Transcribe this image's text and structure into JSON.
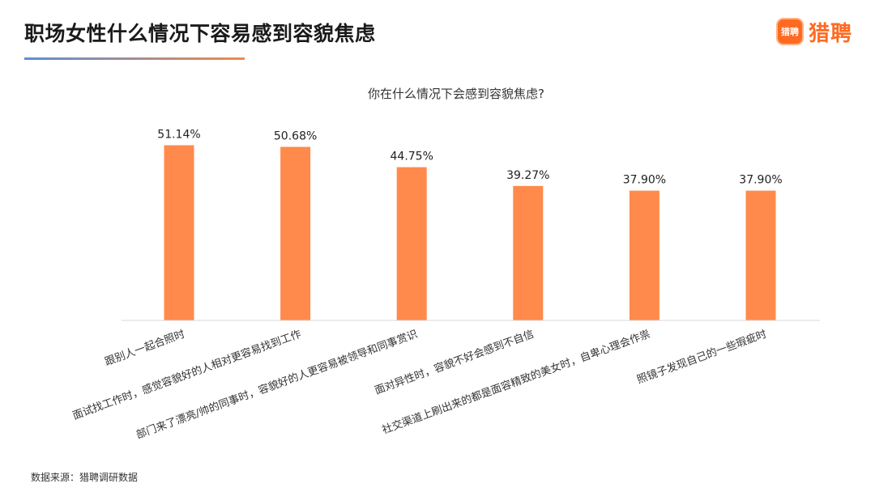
{
  "header": {
    "title": "职场女性什么情况下容易感到容貌焦虑",
    "brand_icon_text": "猎聘",
    "brand_name": "猎聘"
  },
  "footer": {
    "source": "数据来源：猎聘调研数据"
  },
  "colors": {
    "bar": "#ff8a4c",
    "brand": "#ff6a21",
    "axis": "#d9d9d9",
    "text": "#333333"
  },
  "chart_data": {
    "type": "bar",
    "title": "你在什么情况下会感到容貌焦虑?",
    "xlabel": "",
    "ylabel": "",
    "ylim": [
      0,
      60
    ],
    "grid": false,
    "legend": "none",
    "categories": [
      "跟别人一起合照时",
      "面试找工作时，感觉容貌好的人相对更容易找到工作",
      "部门来了漂亮/帅的同事时，容貌好的人更容易被领导和同事赏识",
      "面对异性时，容貌不好会感到不自信",
      "社交渠道上刷出来的都是面容精致的美女时，自卑心理会作祟",
      "照镜子发现自己的一些瑕疵时"
    ],
    "values": [
      51.14,
      50.68,
      44.75,
      39.27,
      37.9,
      37.9
    ],
    "data_labels": [
      "51.14%",
      "50.68%",
      "44.75%",
      "39.27%",
      "37.90%",
      "37.90%"
    ]
  }
}
